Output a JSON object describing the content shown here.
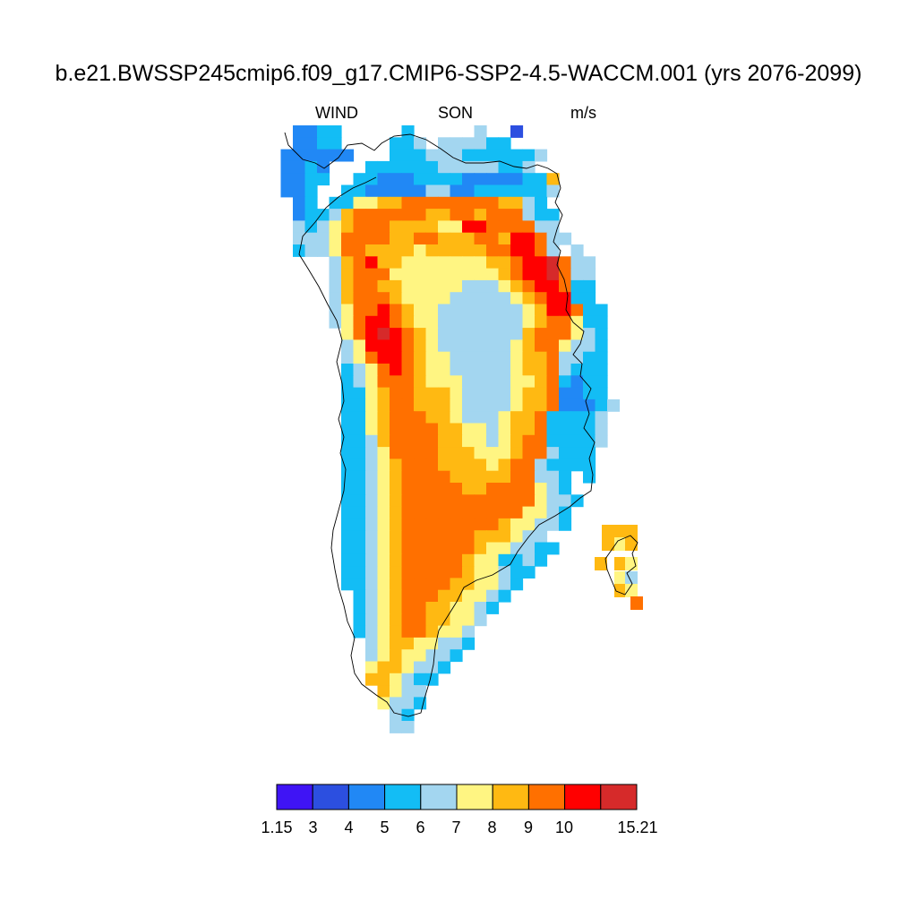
{
  "title": "b.e21.BWSSP245cmip6.f09_g17.CMIP6-SSP2-4.5-WACCM.001 (yrs 2076-2099)",
  "left_label": "WIND",
  "center_label": "SON",
  "right_label": "m/s",
  "colors": [
    "#3f14f5",
    "#2c4fe0",
    "#2188f5",
    "#13bdf5",
    "#a3d6f0",
    "#fff582",
    "#ffb912",
    "#ff7000",
    "#ff0000",
    "#d62a2a"
  ],
  "colorbar_labels": [
    "1.15",
    "3",
    "4",
    "5",
    "6",
    "7",
    "8",
    "9",
    "10",
    "15.21"
  ],
  "chart_data": {
    "type": "heatmap",
    "variable": "WIND",
    "season": "SON",
    "units": "m/s",
    "levels": [
      1.15,
      3,
      4,
      5,
      6,
      7,
      8,
      9,
      10,
      15.21
    ],
    "grid_rows_note_omitted": true,
    "rows": [
      "..2233.....3.....4..1.........",
      "..2233....334.444433.........",
      ".222222...3334443333334.......",
      ".2232...33333344444334.......",
      ".2233..33222333322222336......",
      ".223..332222244223333334......",
      "..23.335566777777776643......",
      "..2334677777766776777433......",
      "..4345677766665588777744......",
      "..44457777667766677688744.....",
      "..3445776666566666778874.4....",
      ".....4678665555555667889744....",
      ".....4677755555555567889744....",
      ".....4677665555544456788733....",
      ".....4677765555444445678833....",
      ".....45778765544444445688733...",
      ".....45788765544444445677533...",
      "......5789876544444446777543...",
      "......4588876544444456775443...",
      "......4578876554444456674433...",
      "......3457876554444456674333...",
      "......3457776555444455673233...",
      "......3356776665444456672233...",
      "......33567766654444566722234..",
      "......3356777665444566733334...",
      "......3356777766554566733334...",
      "......3346777766554567733334...",
      "......334577776665556774333....",
      "......334567776666567743333....",
      "......3345677776666677443.3....",
      "......3345677777667777543......",
      "......33456777777777775443.....",
      "......3345677777777775543......",
      "......3345677777777655443......",
      "......33456777777666544........",
      "......334567777776554433.......",
      "......33456777776553343.........",
      "......3345677777655433..........",
      "......334567777665543...........",
      ".......3456777665543............",
      ".......345677665543.............",
      ".......34567766554..............",
      ".......3456776554...............",
      "........456655443...............",
      "........45655443................",
      "........5665443.................",
      "........665433..................",
      ".........6544...................",
      ".........5443...................",
      "..........43....................",
      "..........44...................."
    ]
  }
}
